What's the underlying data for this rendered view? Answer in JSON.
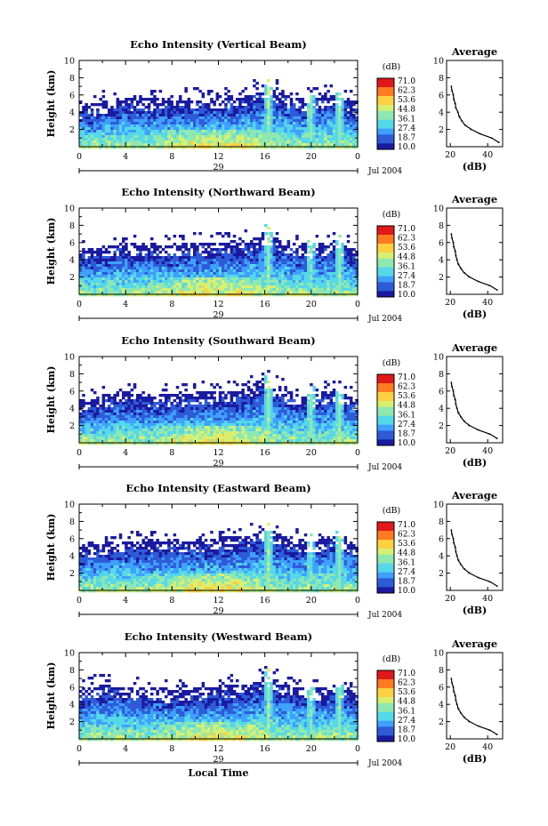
{
  "figure": {
    "date_label": "Jul 2004",
    "x_axis_label": "Local Time",
    "y_axis_label": "Height (km)",
    "colorbar_unit": "(dB)",
    "colorbar_ticks": [
      "71.0",
      "62.3",
      "53.6",
      "44.8",
      "36.1",
      "27.4",
      "18.7",
      "10.0"
    ],
    "time_ticks": [
      "0",
      "4",
      "8",
      "12",
      "16",
      "20",
      "0"
    ],
    "day_labels": [
      "29",
      "29",
      "29",
      "29",
      "29"
    ],
    "height_ticks": [
      "10",
      "8",
      "6",
      "4",
      "2"
    ],
    "average_title": "Average",
    "average_x_label": "(dB)",
    "average_x_ticks": [
      "20",
      "40"
    ],
    "colormap": [
      "#1a1aa0",
      "#2e5bd8",
      "#3fa0ff",
      "#55d8e8",
      "#8fe8b0",
      "#d8f070",
      "#ffd040",
      "#ff7a20",
      "#e01818"
    ]
  },
  "chart_data": [
    {
      "type": "heatmap",
      "title": "Echo Intensity (Vertical Beam)",
      "xlabel": "",
      "ylabel": "Height (km)",
      "xlim": [
        0,
        24
      ],
      "ylim": [
        0,
        10
      ],
      "colorbar": {
        "label": "(dB)",
        "range": [
          10.0,
          71.0
        ]
      },
      "cloud_top_km": [
        [
          0,
          4.3
        ],
        [
          2,
          5.1
        ],
        [
          4,
          5.3
        ],
        [
          6,
          5.4
        ],
        [
          8,
          5.2
        ],
        [
          10,
          5.5
        ],
        [
          12,
          5.6
        ],
        [
          14,
          5.8
        ],
        [
          16,
          7.0
        ],
        [
          18,
          5.6
        ],
        [
          20,
          5.3
        ],
        [
          22,
          6.2
        ],
        [
          24,
          4.6
        ]
      ],
      "vertical_streaks_hours": [
        16.2,
        19.8,
        22.3
      ],
      "profile": {
        "title": "Average",
        "xlabel": "(dB)",
        "xlim": [
          18,
          48
        ],
        "ylim": [
          0,
          10
        ],
        "height_km": [
          0.5,
          1,
          1.5,
          2,
          2.5,
          3,
          3.5,
          4,
          4.5,
          5,
          5.5,
          6,
          6.5,
          7
        ],
        "db": [
          46,
          42,
          36,
          31,
          28,
          26,
          25,
          24,
          23,
          22.5,
          22,
          21.5,
          21,
          20.5
        ]
      }
    },
    {
      "type": "heatmap",
      "title": "Echo Intensity (Northward Beam)",
      "xlabel": "",
      "ylabel": "Height (km)",
      "xlim": [
        0,
        24
      ],
      "ylim": [
        0,
        10
      ],
      "colorbar": {
        "label": "(dB)",
        "range": [
          10.0,
          71.0
        ]
      },
      "cloud_top_km": [
        [
          0,
          4.8
        ],
        [
          2,
          5.4
        ],
        [
          4,
          5.6
        ],
        [
          6,
          5.6
        ],
        [
          8,
          5.5
        ],
        [
          10,
          5.7
        ],
        [
          12,
          5.8
        ],
        [
          14,
          5.9
        ],
        [
          16,
          7.0
        ],
        [
          18,
          5.7
        ],
        [
          20,
          5.4
        ],
        [
          22,
          6.0
        ],
        [
          24,
          4.8
        ]
      ],
      "vertical_streaks_hours": [
        16.2,
        19.8,
        22.3
      ],
      "profile": {
        "title": "Average",
        "xlabel": "(dB)",
        "xlim": [
          18,
          48
        ],
        "ylim": [
          0,
          10
        ],
        "height_km": [
          0.5,
          1,
          1.5,
          2,
          2.5,
          3,
          3.5,
          4,
          4.5,
          5,
          5.5,
          6,
          6.5,
          7
        ],
        "db": [
          45,
          41,
          35,
          30,
          27.5,
          25.5,
          24.5,
          23.5,
          23,
          22.5,
          22,
          21.5,
          21,
          20.5
        ]
      }
    },
    {
      "type": "heatmap",
      "title": "Echo Intensity (Southward Beam)",
      "xlabel": "",
      "ylabel": "Height (km)",
      "xlim": [
        0,
        24
      ],
      "ylim": [
        0,
        10
      ],
      "colorbar": {
        "label": "(dB)",
        "range": [
          10.0,
          71.0
        ]
      },
      "cloud_top_km": [
        [
          0,
          4.7
        ],
        [
          2,
          5.3
        ],
        [
          4,
          5.6
        ],
        [
          6,
          5.4
        ],
        [
          8,
          5.3
        ],
        [
          10,
          5.6
        ],
        [
          12,
          5.8
        ],
        [
          14,
          5.9
        ],
        [
          16,
          7.2
        ],
        [
          18,
          5.6
        ],
        [
          20,
          5.4
        ],
        [
          22,
          5.9
        ],
        [
          24,
          4.8
        ]
      ],
      "vertical_streaks_hours": [
        16.2,
        19.8,
        22.3
      ],
      "profile": {
        "title": "Average",
        "xlabel": "(dB)",
        "xlim": [
          18,
          48
        ],
        "ylim": [
          0,
          10
        ],
        "height_km": [
          0.5,
          1,
          1.5,
          2,
          2.5,
          3,
          3.5,
          4,
          4.5,
          5,
          5.5,
          6,
          6.5,
          7
        ],
        "db": [
          45,
          41,
          35,
          30,
          27.5,
          25.5,
          24.5,
          23.5,
          23,
          22.5,
          22,
          21.5,
          21,
          20.5
        ]
      }
    },
    {
      "type": "heatmap",
      "title": "Echo Intensity (Eastward Beam)",
      "xlabel": "",
      "ylabel": "Height (km)",
      "xlim": [
        0,
        24
      ],
      "ylim": [
        0,
        10
      ],
      "colorbar": {
        "label": "(dB)",
        "range": [
          10.0,
          71.0
        ]
      },
      "cloud_top_km": [
        [
          0,
          4.8
        ],
        [
          2,
          5.3
        ],
        [
          4,
          5.5
        ],
        [
          6,
          5.6
        ],
        [
          8,
          5.5
        ],
        [
          10,
          5.6
        ],
        [
          12,
          5.9
        ],
        [
          14,
          6.0
        ],
        [
          16,
          7.0
        ],
        [
          18,
          5.7
        ],
        [
          20,
          5.5
        ],
        [
          22,
          6.2
        ],
        [
          24,
          4.9
        ]
      ],
      "vertical_streaks_hours": [
        16.2,
        19.8,
        22.3
      ],
      "profile": {
        "title": "Average",
        "xlabel": "(dB)",
        "xlim": [
          18,
          48
        ],
        "ylim": [
          0,
          10
        ],
        "height_km": [
          0.5,
          1,
          1.5,
          2,
          2.5,
          3,
          3.5,
          4,
          4.5,
          5,
          5.5,
          6,
          6.5,
          7
        ],
        "db": [
          45,
          41,
          35,
          30,
          27.5,
          25.5,
          24.5,
          23.5,
          23,
          22.5,
          22,
          21.5,
          21,
          20.5
        ]
      }
    },
    {
      "type": "heatmap",
      "title": "Echo Intensity (Westward Beam)",
      "xlabel": "Local Time",
      "ylabel": "Height (km)",
      "xlim": [
        0,
        24
      ],
      "ylim": [
        0,
        10
      ],
      "colorbar": {
        "label": "(dB)",
        "range": [
          10.0,
          71.0
        ]
      },
      "cloud_top_km": [
        [
          0,
          5.6
        ],
        [
          2,
          6.2
        ],
        [
          4,
          5.8
        ],
        [
          6,
          5.5
        ],
        [
          8,
          5.4
        ],
        [
          10,
          5.6
        ],
        [
          12,
          5.9
        ],
        [
          14,
          6.1
        ],
        [
          16,
          7.2
        ],
        [
          18,
          5.9
        ],
        [
          20,
          5.6
        ],
        [
          22,
          6.0
        ],
        [
          24,
          5.2
        ]
      ],
      "vertical_streaks_hours": [
        16.2,
        19.8,
        22.3
      ],
      "profile": {
        "title": "Average",
        "xlabel": "(dB)",
        "xlim": [
          18,
          48
        ],
        "ylim": [
          0,
          10
        ],
        "height_km": [
          0.5,
          1,
          1.5,
          2,
          2.5,
          3,
          3.5,
          4,
          4.5,
          5,
          5.5,
          6,
          6.5,
          7
        ],
        "db": [
          45,
          41,
          35,
          30,
          27.5,
          25.5,
          24.5,
          23.5,
          23,
          22.5,
          22,
          21.5,
          21,
          20.5
        ]
      }
    }
  ]
}
